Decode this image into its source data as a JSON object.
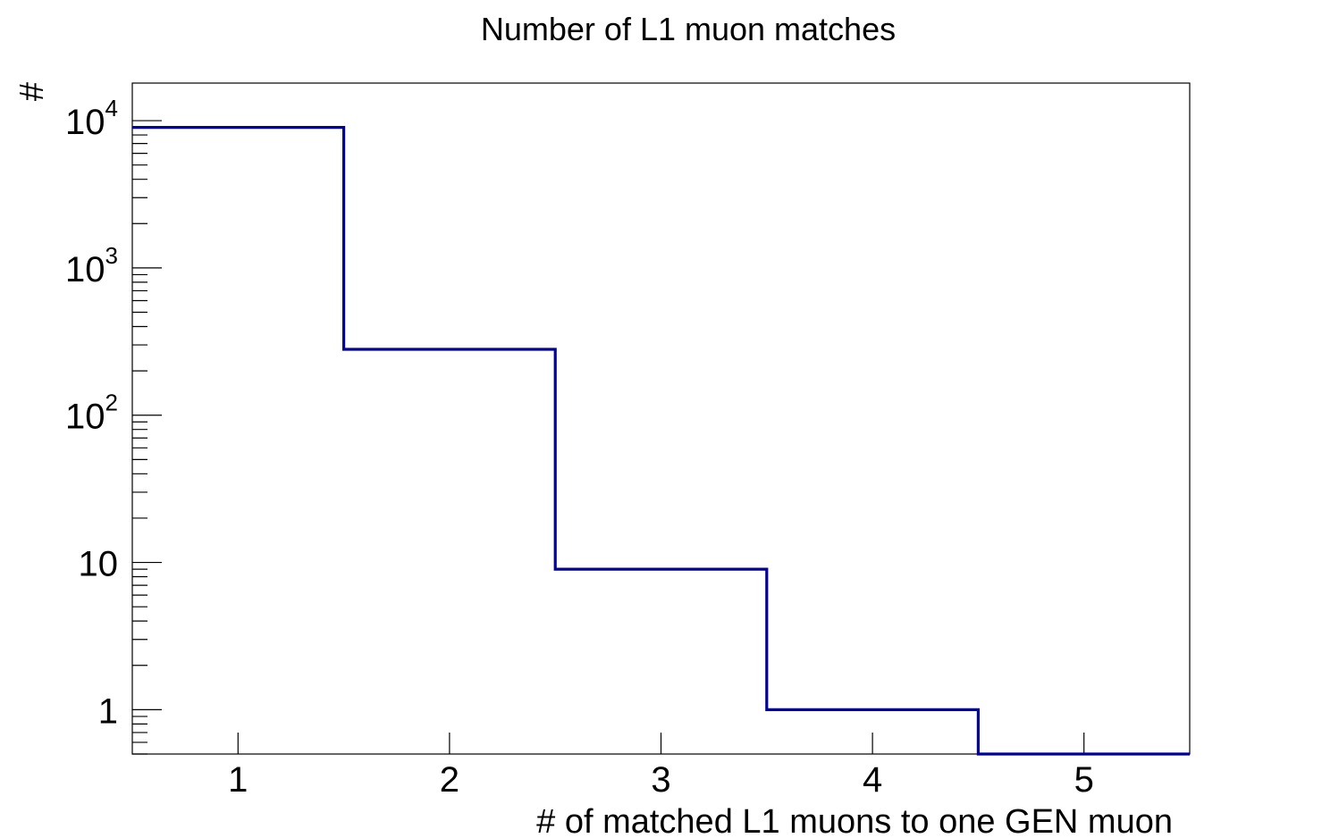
{
  "chart_data": {
    "type": "histogram",
    "title": "Number of L1 muon matches",
    "xlabel": "# of matched L1 muons to one GEN muon",
    "ylabel": "#",
    "xlim": [
      0.5,
      5.5
    ],
    "ylim": [
      0.5,
      18000
    ],
    "y_scale": "log",
    "grid": false,
    "legend": "none",
    "line_color": "#000099",
    "bin_edges": [
      0.5,
      1.5,
      2.5,
      3.5,
      4.5,
      5.5
    ],
    "values": [
      9000,
      280,
      9,
      1,
      0
    ],
    "x_ticks": [
      {
        "value": 1,
        "label": "1"
      },
      {
        "value": 2,
        "label": "2"
      },
      {
        "value": 3,
        "label": "3"
      },
      {
        "value": 4,
        "label": "4"
      },
      {
        "value": 5,
        "label": "5"
      }
    ],
    "y_ticks": [
      {
        "value": 1,
        "base": "1",
        "exp": ""
      },
      {
        "value": 10,
        "base": "10",
        "exp": ""
      },
      {
        "value": 100,
        "base": "10",
        "exp": "2"
      },
      {
        "value": 1000,
        "base": "10",
        "exp": "3"
      },
      {
        "value": 10000,
        "base": "10",
        "exp": "4"
      }
    ]
  }
}
